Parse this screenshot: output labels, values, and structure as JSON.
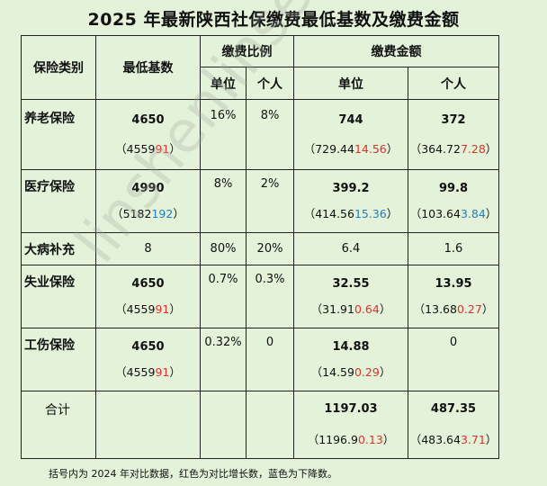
{
  "title": "2025 年最新陕西社保缴费最低基数及缴费金额",
  "headers": {
    "category": "保险类别",
    "min_base": "最低基数",
    "ratio": "缴费比例",
    "amount": "缴费金额",
    "unit": "单位",
    "personal": "个人",
    "unit2": "单位",
    "personal2": "个人"
  },
  "rows": [
    {
      "name": "养老保险",
      "base": "4650",
      "base_prev": "4559",
      "base_delta": "91",
      "base_color": "red",
      "unit_rate": "16%",
      "personal_rate": "8%",
      "unit_amt": "744",
      "unit_prev": "729.44",
      "unit_delta": "14.56",
      "unit_color": "red",
      "personal_amt": "372",
      "personal_prev": "364.72",
      "personal_delta": "7.28",
      "personal_color": "red"
    },
    {
      "name": "医疗保险",
      "base": "4990",
      "base_prev": "5182",
      "base_delta": "192",
      "base_color": "blue",
      "unit_rate": "8%",
      "personal_rate": "2%",
      "unit_amt": "399.2",
      "unit_prev": "414.56",
      "unit_delta": "15.36",
      "unit_color": "blue",
      "personal_amt": "99.8",
      "personal_prev": "103.64",
      "personal_delta": "3.84",
      "personal_color": "blue"
    },
    {
      "name": "大病补充",
      "base": "8",
      "unit_rate": "80%",
      "personal_rate": "20%",
      "unit_amt": "6.4",
      "personal_amt": "1.6"
    },
    {
      "name": "失业保险",
      "base": "4650",
      "base_prev": "4559",
      "base_delta": "91",
      "base_color": "red",
      "unit_rate": "0.7%",
      "personal_rate": "0.3%",
      "unit_amt": "32.55",
      "unit_prev": "31.91",
      "unit_delta": "0.64",
      "unit_color": "red",
      "personal_amt": "13.95",
      "personal_prev": "13.68",
      "personal_delta": "0.27",
      "personal_color": "red"
    },
    {
      "name": "工伤保险",
      "base": "4650",
      "base_prev": "4559",
      "base_delta": "91",
      "base_color": "red",
      "unit_rate": "0.32%",
      "personal_rate": "0",
      "unit_amt": "14.88",
      "unit_prev": "14.59",
      "unit_delta": "0.29",
      "unit_color": "red",
      "personal_amt": "0"
    },
    {
      "name": "合计",
      "unit_amt": "1197.03",
      "unit_prev": "1196.9",
      "unit_delta": "0.13",
      "unit_color": "red",
      "personal_amt": "487.35",
      "personal_prev": "483.64",
      "personal_delta": "3.71",
      "personal_color": "red"
    }
  ],
  "footnote": "括号内为 2024 年对比数据，红色为对比增长数，蓝色为下降数。",
  "watermark": "linshenlinsen"
}
